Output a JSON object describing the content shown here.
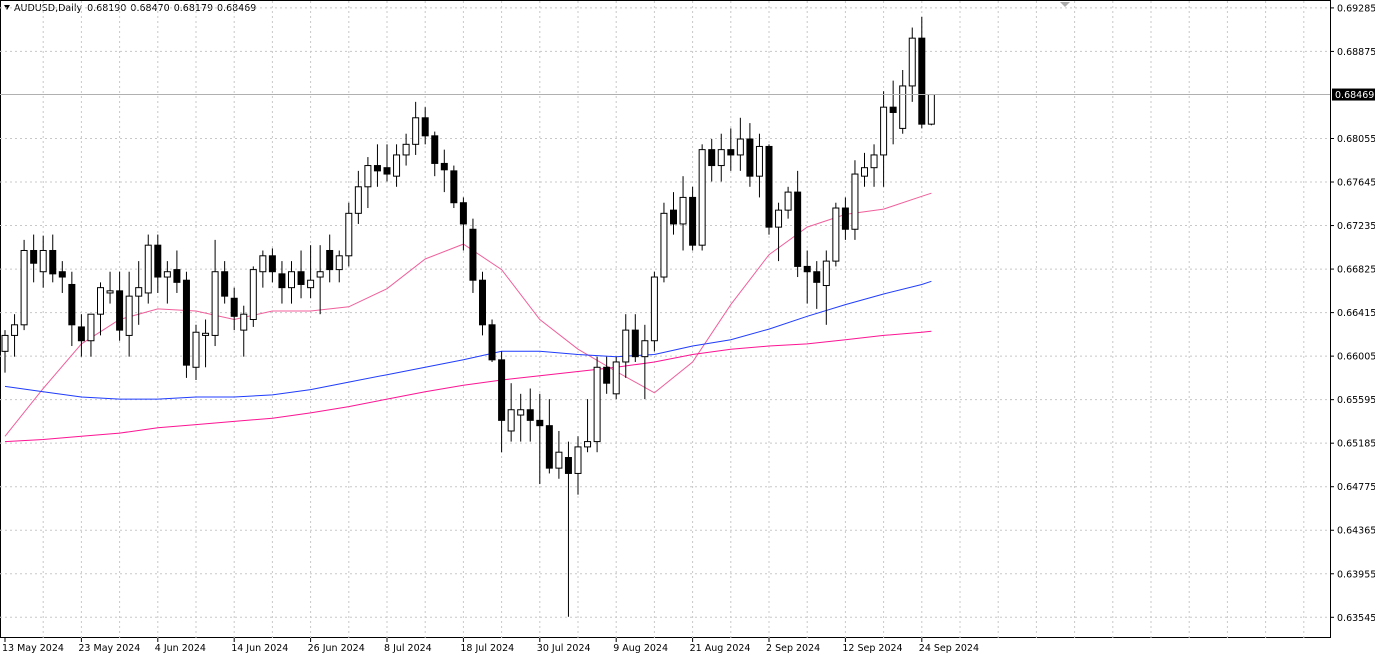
{
  "chart_data": {
    "type": "candlestick",
    "title": "AUDUSD,Daily",
    "categories": [
      "13 May 2024",
      null,
      null,
      null,
      null,
      null,
      null,
      null,
      "23 May 2024",
      null,
      null,
      null,
      null,
      null,
      null,
      null,
      "4 Jun 2024",
      null,
      null,
      null,
      null,
      null,
      null,
      null,
      "14 Jun 2024",
      null,
      null,
      null,
      null,
      null,
      null,
      null,
      "26 Jun 2024",
      null,
      null,
      null,
      null,
      null,
      null,
      null,
      "8 Jul 2024",
      null,
      null,
      null,
      null,
      null,
      null,
      null,
      "18 Jul 2024",
      null,
      null,
      null,
      null,
      null,
      null,
      null,
      "30 Jul 2024",
      null,
      null,
      null,
      null,
      null,
      null,
      null,
      "9 Aug 2024",
      null,
      null,
      null,
      null,
      null,
      null,
      null,
      "21 Aug 2024",
      null,
      null,
      null,
      null,
      null,
      null,
      null,
      "2 Sep 2024",
      null,
      null,
      null,
      null,
      null,
      null,
      null,
      "12 Sep 2024",
      null,
      null,
      null,
      null,
      null,
      null,
      null,
      "24 Sep 2024",
      null
    ],
    "open": [
      0.6605,
      0.662,
      0.663,
      0.67,
      0.668,
      0.67,
      0.668,
      0.6668,
      0.6628,
      0.6615,
      0.664,
      0.666,
      0.6662,
      0.662,
      0.6657,
      0.666,
      0.6705,
      0.6675,
      0.6682,
      0.6672,
      0.659,
      0.662,
      0.662,
      0.668,
      0.6655,
      0.6625,
      0.6635,
      0.668,
      0.6695,
      0.6678,
      0.6665,
      0.668,
      0.6665,
      0.6675,
      0.67,
      0.6682,
      0.6695,
      0.6735,
      0.676,
      0.678,
      0.6778,
      0.677,
      0.679,
      0.68,
      0.6825,
      0.6808,
      0.6782,
      0.6775,
      0.6745,
      0.672,
      0.6672,
      0.663,
      0.6597,
      0.653,
      0.6545,
      0.655,
      0.654,
      0.6535,
      0.6495,
      0.6505,
      0.649,
      0.6515,
      0.652,
      0.659,
      0.6565,
      0.6595,
      0.6625,
      0.66,
      0.6615,
      0.6675,
      0.6738,
      0.6725,
      0.675,
      0.6705,
      0.6795,
      0.678,
      0.6795,
      0.679,
      0.6805,
      0.677,
      0.6798,
      0.6722,
      0.6738,
      0.6755,
      0.6685,
      0.668,
      0.6667,
      0.669,
      0.674,
      0.672,
      0.677,
      0.6778,
      0.679,
      0.6835,
      0.6815,
      0.6855,
      0.69,
      0.6819
    ],
    "high": [
      0.6625,
      0.664,
      0.671,
      0.6715,
      0.6714,
      0.6715,
      0.669,
      0.668,
      0.664,
      0.664,
      0.667,
      0.668,
      0.668,
      0.668,
      0.669,
      0.6715,
      0.6715,
      0.669,
      0.67,
      0.668,
      0.663,
      0.6635,
      0.671,
      0.669,
      0.6665,
      0.6648,
      0.6685,
      0.67,
      0.6702,
      0.669,
      0.669,
      0.67,
      0.6705,
      0.6705,
      0.6715,
      0.67,
      0.6745,
      0.6775,
      0.6788,
      0.68,
      0.68,
      0.68,
      0.681,
      0.684,
      0.6835,
      0.6812,
      0.6795,
      0.678,
      0.675,
      0.673,
      0.668,
      0.6635,
      0.6605,
      0.6575,
      0.6565,
      0.657,
      0.6565,
      0.656,
      0.653,
      0.652,
      0.6525,
      0.656,
      0.66,
      0.66,
      0.66,
      0.664,
      0.664,
      0.663,
      0.668,
      0.6745,
      0.6755,
      0.677,
      0.676,
      0.68,
      0.6805,
      0.681,
      0.6815,
      0.6825,
      0.682,
      0.681,
      0.68,
      0.6745,
      0.676,
      0.6775,
      0.67,
      0.669,
      0.67,
      0.6745,
      0.675,
      0.6785,
      0.6792,
      0.68,
      0.685,
      0.686,
      0.687,
      0.691,
      0.692,
      0.6847
    ],
    "low": [
      0.6585,
      0.66,
      0.6625,
      0.667,
      0.6665,
      0.667,
      0.666,
      0.661,
      0.66,
      0.66,
      0.662,
      0.665,
      0.6615,
      0.66,
      0.663,
      0.665,
      0.666,
      0.665,
      0.666,
      0.658,
      0.6578,
      0.659,
      0.661,
      0.665,
      0.6625,
      0.66,
      0.6628,
      0.6665,
      0.667,
      0.665,
      0.665,
      0.6655,
      0.6655,
      0.664,
      0.667,
      0.667,
      0.6685,
      0.6725,
      0.674,
      0.676,
      0.6765,
      0.676,
      0.678,
      0.679,
      0.68,
      0.677,
      0.6755,
      0.674,
      0.67,
      0.666,
      0.662,
      0.6595,
      0.651,
      0.652,
      0.652,
      0.652,
      0.648,
      0.649,
      0.6485,
      0.6355,
      0.647,
      0.651,
      0.651,
      0.6565,
      0.656,
      0.658,
      0.6595,
      0.656,
      0.6605,
      0.667,
      0.6715,
      0.67,
      0.67,
      0.67,
      0.6765,
      0.6765,
      0.6775,
      0.6775,
      0.676,
      0.675,
      0.6715,
      0.669,
      0.673,
      0.6675,
      0.665,
      0.6645,
      0.663,
      0.6685,
      0.671,
      0.671,
      0.676,
      0.676,
      0.676,
      0.68,
      0.681,
      0.684,
      0.6815,
      0.68179
    ],
    "close": [
      0.662,
      0.663,
      0.67,
      0.6688,
      0.67,
      0.6678,
      0.6675,
      0.663,
      0.6615,
      0.664,
      0.6665,
      0.6662,
      0.6625,
      0.6657,
      0.6665,
      0.6705,
      0.6675,
      0.668,
      0.667,
      0.6592,
      0.6623,
      0.6622,
      0.668,
      0.6657,
      0.6638,
      0.664,
      0.6682,
      0.6695,
      0.668,
      0.6665,
      0.668,
      0.6668,
      0.6672,
      0.668,
      0.6682,
      0.6695,
      0.6735,
      0.676,
      0.678,
      0.6775,
      0.6772,
      0.679,
      0.68,
      0.6825,
      0.6808,
      0.6782,
      0.6776,
      0.6745,
      0.6725,
      0.6672,
      0.663,
      0.6597,
      0.654,
      0.655,
      0.655,
      0.654,
      0.6535,
      0.6495,
      0.651,
      0.649,
      0.6515,
      0.652,
      0.659,
      0.6575,
      0.6595,
      0.6625,
      0.66,
      0.6615,
      0.6675,
      0.6735,
      0.6725,
      0.675,
      0.6705,
      0.6795,
      0.678,
      0.6795,
      0.679,
      0.6805,
      0.677,
      0.6798,
      0.6722,
      0.6738,
      0.6755,
      0.6685,
      0.668,
      0.667,
      0.669,
      0.674,
      0.672,
      0.6772,
      0.6778,
      0.679,
      0.6835,
      0.683,
      0.6855,
      0.69,
      0.6819,
      0.68469
    ],
    "ohlc_labels": [
      "0.68190",
      "0.68470",
      "0.68179",
      "0.68469"
    ],
    "up_color": "#ffffff",
    "down_color": "#000000",
    "lines": [
      {
        "color": "#f0609c",
        "x": [
          0,
          4,
          8,
          12,
          16,
          20,
          24,
          28,
          32,
          36,
          40,
          44,
          48,
          52,
          56,
          60,
          64,
          68,
          72,
          76,
          80,
          84,
          88,
          92,
          96,
          97
        ],
        "values": [
          0.6525,
          0.657,
          0.6612,
          0.6635,
          0.6645,
          0.6643,
          0.6635,
          0.6643,
          0.6643,
          0.6647,
          0.6664,
          0.6692,
          0.6706,
          0.6682,
          0.6635,
          0.6607,
          0.6586,
          0.6566,
          0.6595,
          0.6649,
          0.6696,
          0.6722,
          0.6734,
          0.6739,
          0.6751,
          0.6754
        ]
      },
      {
        "color": "#1f3cff",
        "x": [
          0,
          4,
          8,
          12,
          16,
          20,
          24,
          28,
          32,
          36,
          40,
          44,
          48,
          52,
          56,
          60,
          64,
          68,
          72,
          76,
          80,
          84,
          88,
          92,
          96,
          97
        ],
        "values": [
          0.6572,
          0.6567,
          0.6562,
          0.656,
          0.656,
          0.6562,
          0.6562,
          0.6564,
          0.6569,
          0.6576,
          0.6583,
          0.659,
          0.6597,
          0.6605,
          0.6605,
          0.6602,
          0.66,
          0.6602,
          0.661,
          0.6616,
          0.6626,
          0.6638,
          0.6649,
          0.6659,
          0.6668,
          0.6671
        ]
      },
      {
        "color": "#ff1493",
        "x": [
          0,
          4,
          8,
          12,
          16,
          20,
          24,
          28,
          32,
          36,
          40,
          44,
          48,
          52,
          56,
          60,
          64,
          68,
          72,
          76,
          80,
          84,
          88,
          92,
          96,
          97
        ],
        "values": [
          0.652,
          0.6522,
          0.6525,
          0.6528,
          0.6533,
          0.6536,
          0.6539,
          0.6542,
          0.6547,
          0.6553,
          0.656,
          0.6567,
          0.6573,
          0.6578,
          0.6582,
          0.6586,
          0.659,
          0.6595,
          0.6602,
          0.6607,
          0.661,
          0.6612,
          0.6616,
          0.662,
          0.6623,
          0.6624
        ]
      }
    ],
    "ylim": [
      0.6335,
      0.6935
    ],
    "yticks": [
      0.63545,
      0.63955,
      0.64365,
      0.64775,
      0.65185,
      0.65595,
      0.66005,
      0.66415,
      0.66825,
      0.67235,
      0.67645,
      0.68055,
      0.68875,
      0.69285
    ],
    "grid": true
  }
}
